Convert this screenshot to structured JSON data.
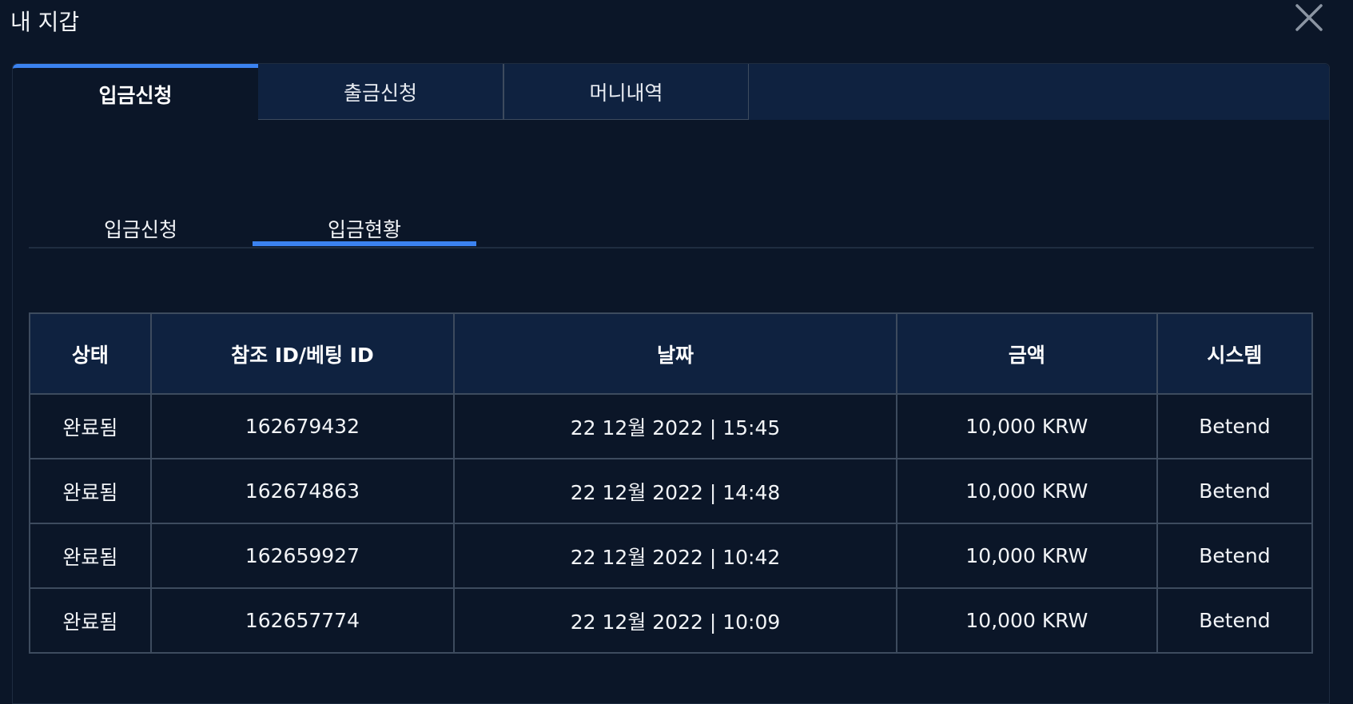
{
  "header": {
    "title": "내 지갑",
    "close_icon": "close-icon"
  },
  "tabs": [
    {
      "label": "입금신청",
      "active": true
    },
    {
      "label": "출금신청"
    },
    {
      "label": "머니내역"
    }
  ],
  "subtabs": [
    {
      "label": "입금신청"
    },
    {
      "label": "입금현황",
      "active": true
    }
  ],
  "colors": {
    "accent": "#3b82f0",
    "background": "#0b1628",
    "header_bg": "#0f2240",
    "border": "#3d4b5e"
  },
  "table": {
    "columns": [
      "상태",
      "참조 ID/베팅 ID",
      "날짜",
      "금액",
      "시스템"
    ],
    "rows": [
      [
        "완료됨",
        "162679432",
        "22 12월 2022 | 15:45",
        "10,000 KRW",
        "Betend"
      ],
      [
        "완료됨",
        "162674863",
        "22 12월 2022 | 14:48",
        "10,000 KRW",
        "Betend"
      ],
      [
        "완료됨",
        "162659927",
        "22 12월 2022 | 10:42",
        "10,000 KRW",
        "Betend"
      ],
      [
        "완료됨",
        "162657774",
        "22 12월 2022 | 10:09",
        "10,000 KRW",
        "Betend"
      ]
    ]
  }
}
